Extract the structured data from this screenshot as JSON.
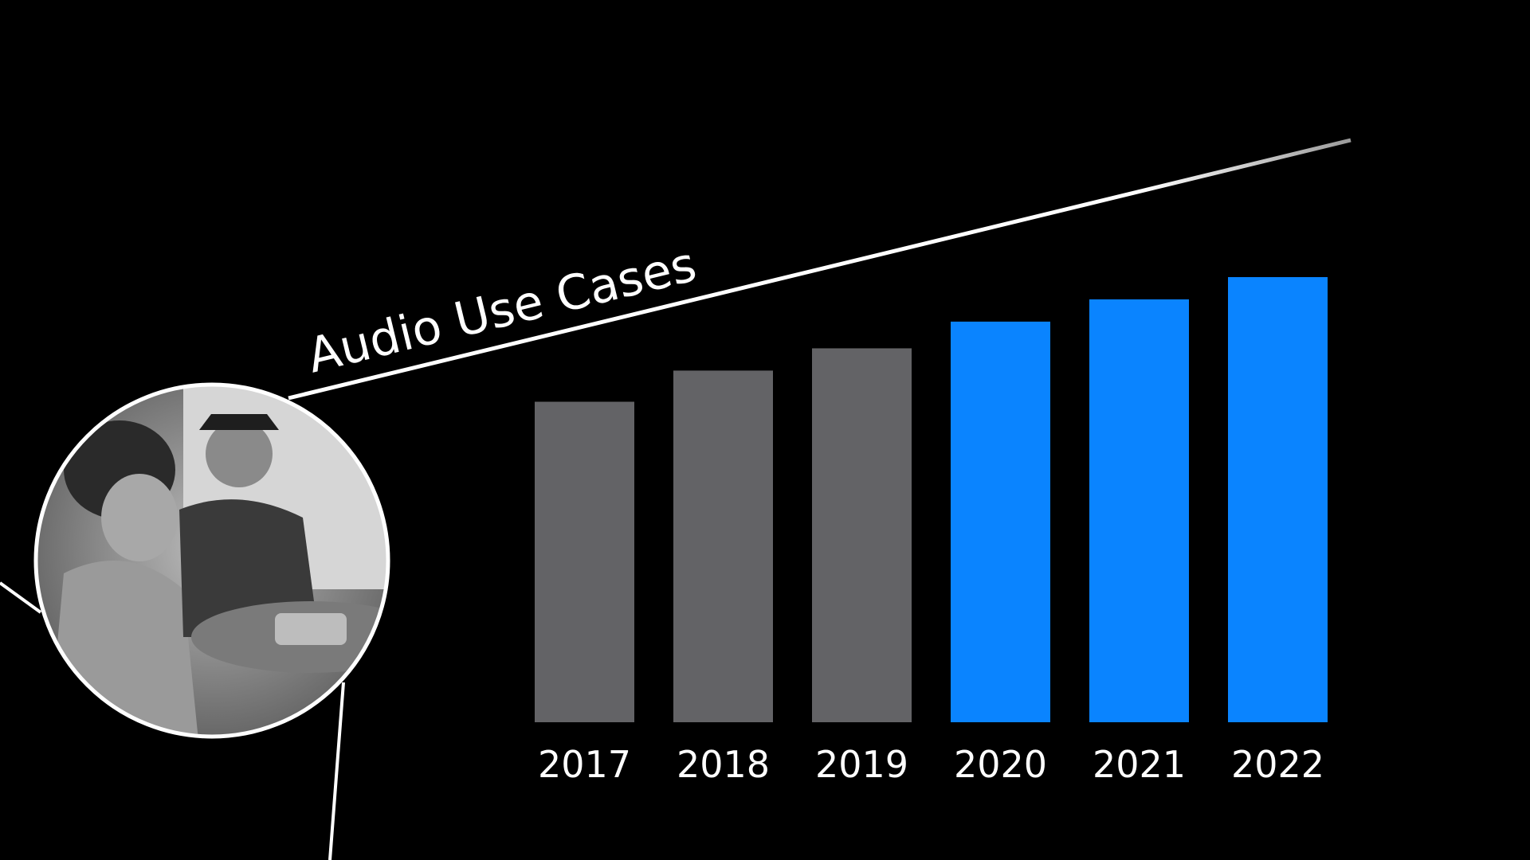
{
  "chart_data": {
    "type": "bar",
    "title": "Audio Use Cases",
    "categories": [
      "2017",
      "2018",
      "2019",
      "2020",
      "2021",
      "2022"
    ],
    "values": [
      72,
      79,
      84,
      90,
      95,
      100
    ],
    "bar_colors": [
      "#636366",
      "#636366",
      "#636366",
      "#0a84ff",
      "#0a84ff",
      "#0a84ff"
    ],
    "xlabel": "",
    "ylabel": "",
    "grid": false
  },
  "colors": {
    "background": "#000000",
    "past": "#636366",
    "highlight": "#0a84ff",
    "line": "#ffffff"
  },
  "image": {
    "subject": "photo-people-with-speaker"
  }
}
